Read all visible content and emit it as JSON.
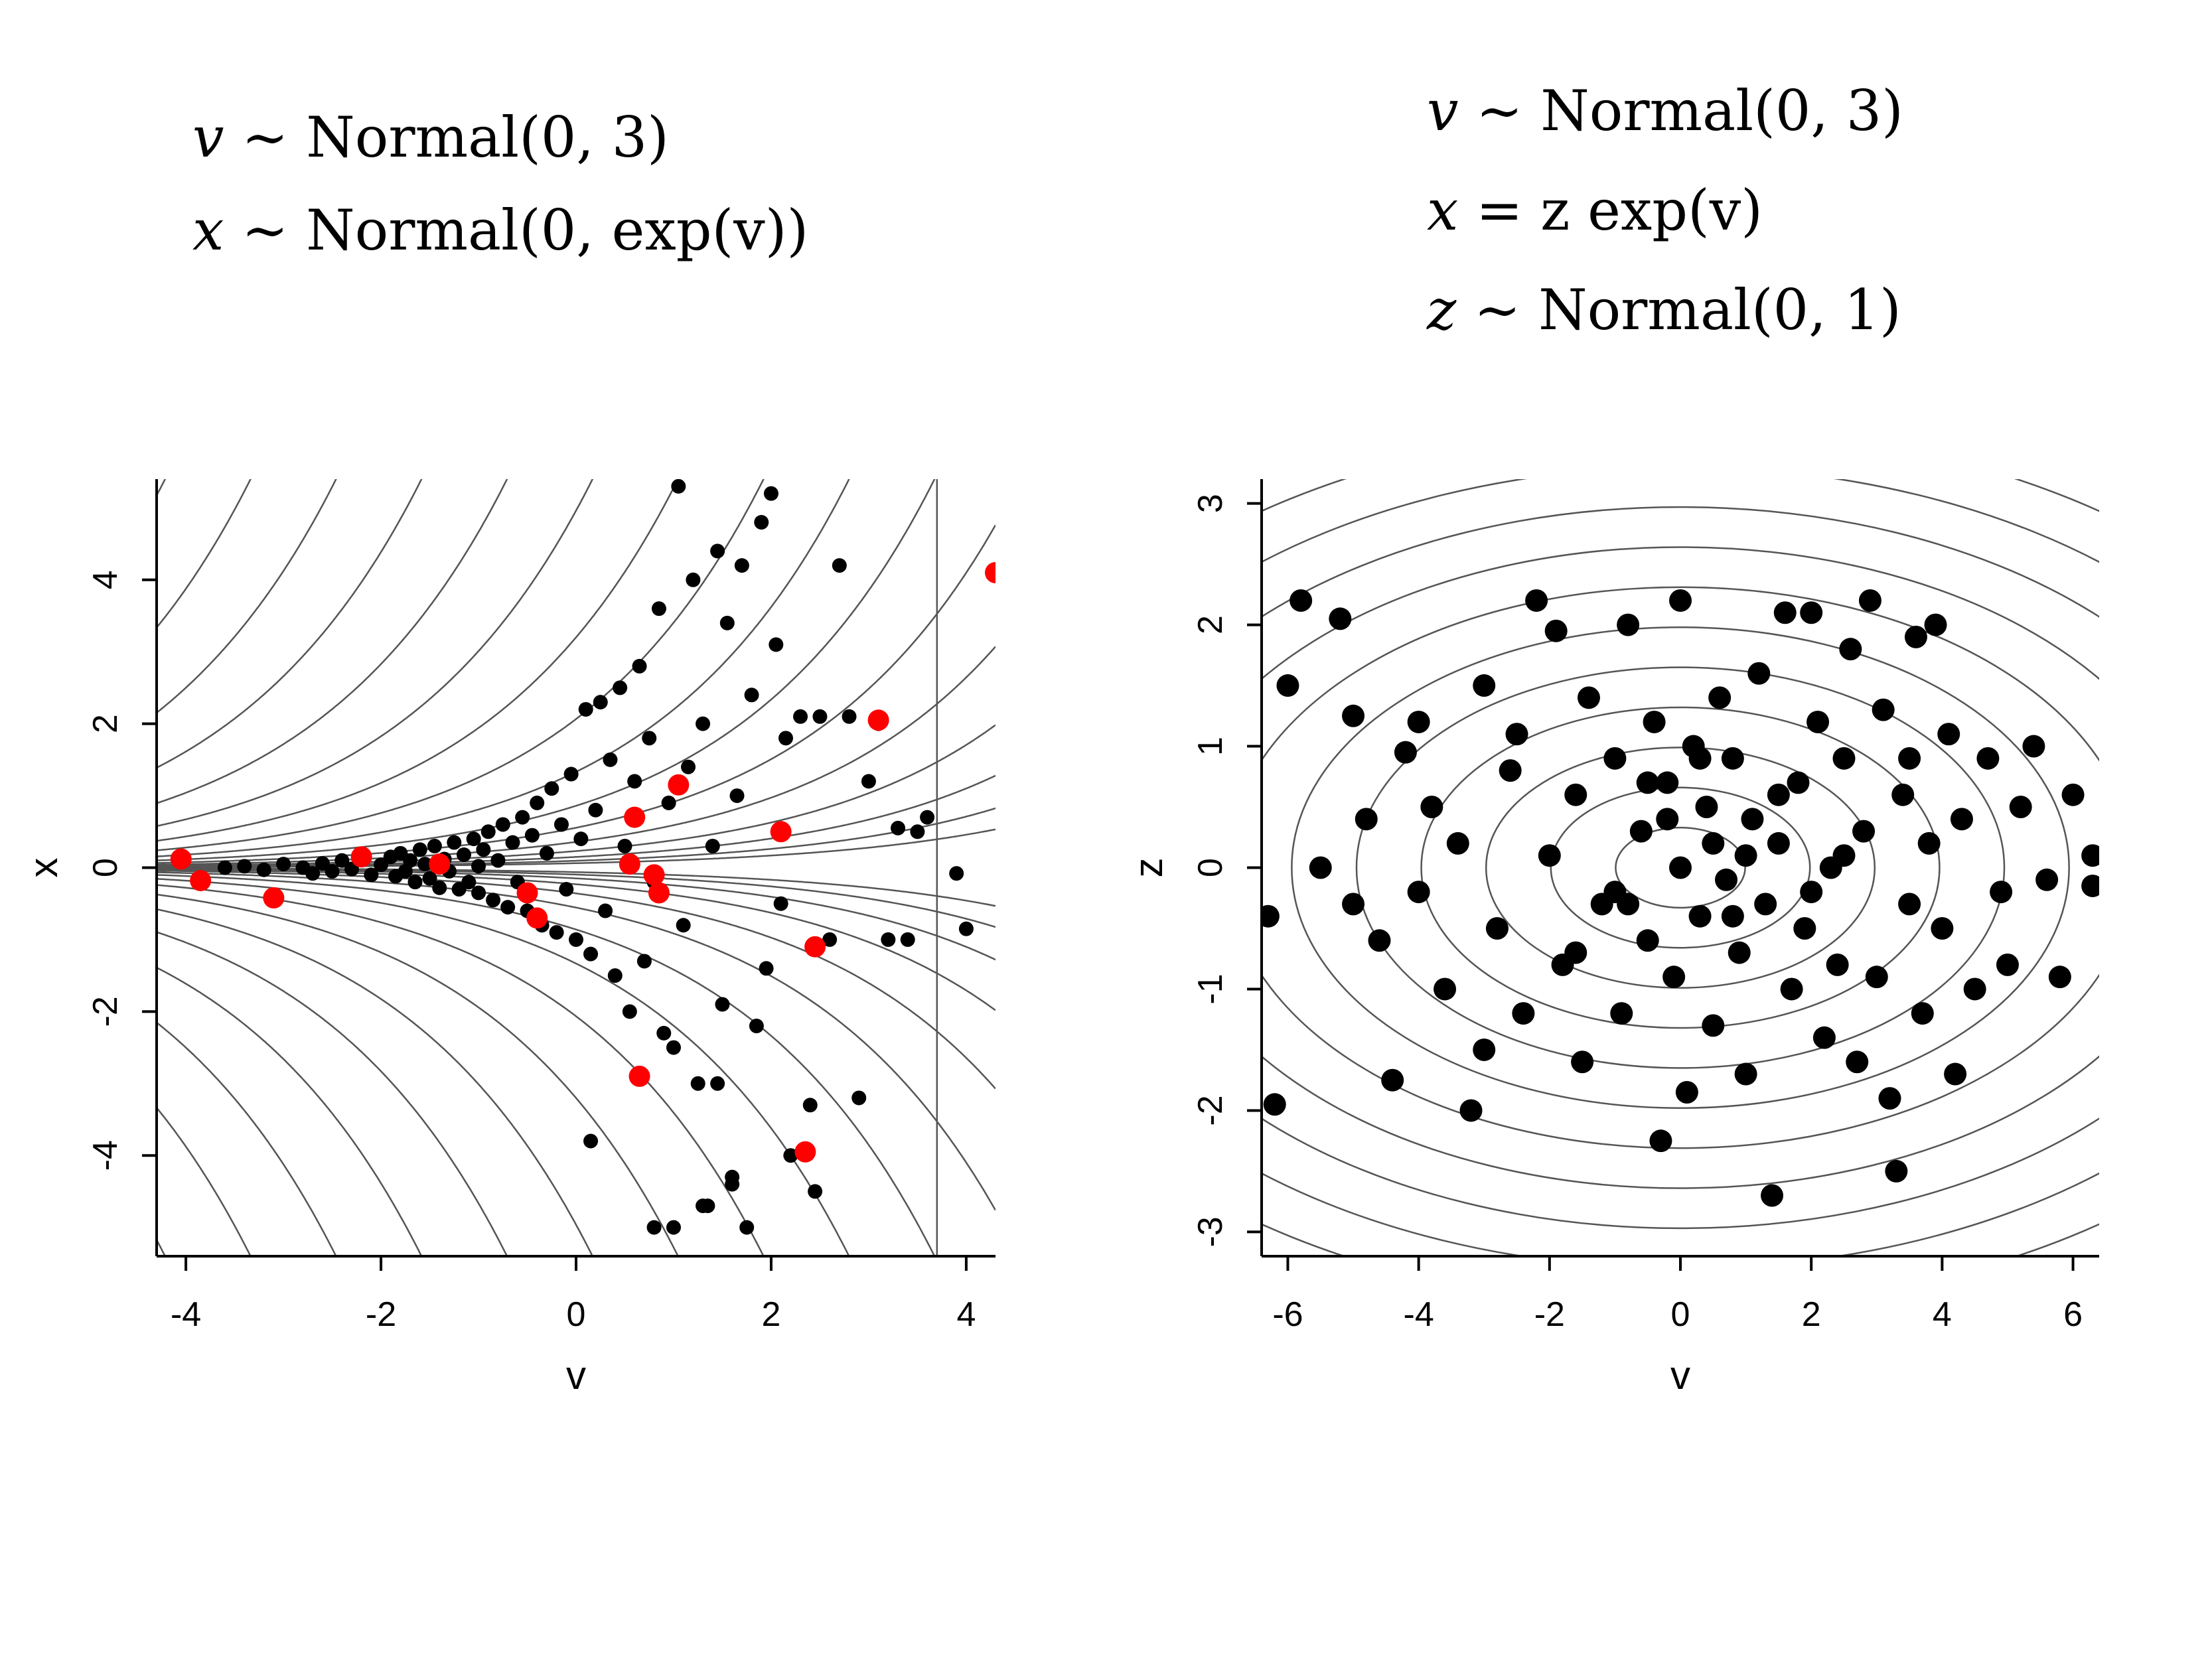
{
  "formulas": {
    "left": [
      {
        "var": "v",
        "rel": "∼",
        "rhs": "Normal(0, 3)"
      },
      {
        "var": "x",
        "rel": "∼",
        "rhs": "Normal(0, exp(v))"
      }
    ],
    "right": [
      {
        "var": "v",
        "rel": "∼",
        "rhs": "Normal(0, 3)"
      },
      {
        "var": "x",
        "rel": "=",
        "rhs": "z exp(v)"
      },
      {
        "var": "z",
        "rel": "∼",
        "rhs": "Normal(0, 1)"
      }
    ]
  },
  "chart_data": [
    {
      "type": "scatter",
      "xlabel": "v",
      "ylabel": "x",
      "xlim": [
        -4.3,
        4.3
      ],
      "ylim": [
        -5.4,
        5.4
      ],
      "xticks": [
        -4,
        -2,
        0,
        2,
        4
      ],
      "yticks": [
        -4,
        -2,
        0,
        2,
        4
      ],
      "contours": "funnel density contours",
      "colors": {
        "points": "#000000",
        "divergent": "#ff0000",
        "contour": "#555555"
      },
      "points": [
        [
          -3.6,
          0.0
        ],
        [
          -3.4,
          0.02
        ],
        [
          -3.2,
          -0.03
        ],
        [
          -3.0,
          0.05
        ],
        [
          -2.8,
          0.0
        ],
        [
          -2.7,
          -0.08
        ],
        [
          -2.6,
          0.06
        ],
        [
          -2.5,
          -0.05
        ],
        [
          -2.4,
          0.1
        ],
        [
          -2.3,
          -0.02
        ],
        [
          -2.2,
          0.12
        ],
        [
          -2.1,
          -0.1
        ],
        [
          -2.0,
          0.04
        ],
        [
          -1.9,
          0.15
        ],
        [
          -1.85,
          -0.12
        ],
        [
          -1.8,
          0.2
        ],
        [
          -1.75,
          -0.05
        ],
        [
          -1.7,
          0.1
        ],
        [
          -1.65,
          -0.2
        ],
        [
          -1.6,
          0.25
        ],
        [
          -1.55,
          0.05
        ],
        [
          -1.5,
          -0.15
        ],
        [
          -1.45,
          0.3
        ],
        [
          -1.4,
          -0.28
        ],
        [
          -1.35,
          0.12
        ],
        [
          -1.3,
          -0.05
        ],
        [
          -1.25,
          0.35
        ],
        [
          -1.2,
          -0.3
        ],
        [
          -1.15,
          0.18
        ],
        [
          -1.1,
          -0.2
        ],
        [
          -1.05,
          0.4
        ],
        [
          -1.0,
          -0.35
        ],
        [
          -0.95,
          0.25
        ],
        [
          -0.9,
          0.5
        ],
        [
          -0.85,
          -0.45
        ],
        [
          -0.8,
          0.1
        ],
        [
          -0.75,
          0.6
        ],
        [
          -0.7,
          -0.55
        ],
        [
          -0.65,
          0.35
        ],
        [
          -0.6,
          -0.2
        ],
        [
          -0.55,
          0.7
        ],
        [
          -0.5,
          -0.6
        ],
        [
          -0.45,
          0.45
        ],
        [
          -0.4,
          0.9
        ],
        [
          -0.35,
          -0.8
        ],
        [
          -0.3,
          0.2
        ],
        [
          -0.25,
          1.1
        ],
        [
          -0.2,
          -0.9
        ],
        [
          -0.15,
          0.6
        ],
        [
          -0.1,
          -0.3
        ],
        [
          -0.05,
          1.3
        ],
        [
          0.0,
          -1.0
        ],
        [
          0.05,
          0.4
        ],
        [
          0.1,
          2.2
        ],
        [
          0.15,
          -1.2
        ],
        [
          0.2,
          0.8
        ],
        [
          0.25,
          2.3
        ],
        [
          0.3,
          -0.6
        ],
        [
          0.35,
          1.5
        ],
        [
          0.4,
          -1.5
        ],
        [
          0.45,
          2.5
        ],
        [
          0.5,
          0.3
        ],
        [
          0.55,
          -2.0
        ],
        [
          0.6,
          1.2
        ],
        [
          0.65,
          2.8
        ],
        [
          0.7,
          -1.3
        ],
        [
          0.75,
          1.8
        ],
        [
          0.8,
          -0.2
        ],
        [
          0.85,
          3.6
        ],
        [
          0.9,
          -2.3
        ],
        [
          0.95,
          0.9
        ],
        [
          1.0,
          -2.5
        ],
        [
          1.05,
          5.3
        ],
        [
          1.1,
          -0.8
        ],
        [
          1.15,
          1.4
        ],
        [
          1.2,
          4.0
        ],
        [
          1.25,
          -3.0
        ],
        [
          1.3,
          2.0
        ],
        [
          1.35,
          -4.7
        ],
        [
          1.4,
          0.3
        ],
        [
          1.45,
          4.4
        ],
        [
          1.5,
          -1.9
        ],
        [
          1.55,
          3.4
        ],
        [
          1.6,
          -4.3
        ],
        [
          1.65,
          1.0
        ],
        [
          1.7,
          4.2
        ],
        [
          1.75,
          -5.0
        ],
        [
          1.8,
          2.4
        ],
        [
          1.85,
          -2.2
        ],
        [
          1.9,
          4.8
        ],
        [
          1.95,
          -1.4
        ],
        [
          2.0,
          5.2
        ],
        [
          2.05,
          3.1
        ],
        [
          2.1,
          -0.5
        ],
        [
          2.15,
          1.8
        ],
        [
          2.2,
          -4.0
        ],
        [
          2.3,
          2.1
        ],
        [
          2.4,
          -3.3
        ],
        [
          2.5,
          2.1
        ],
        [
          2.6,
          -1.0
        ],
        [
          2.7,
          4.2
        ],
        [
          2.8,
          2.1
        ],
        [
          2.9,
          -3.2
        ],
        [
          3.0,
          1.2
        ],
        [
          3.1,
          2.0
        ],
        [
          3.2,
          -1.0
        ],
        [
          3.3,
          0.55
        ],
        [
          3.4,
          -1.0
        ],
        [
          3.5,
          0.5
        ],
        [
          3.6,
          0.7
        ],
        [
          3.9,
          -0.08
        ],
        [
          4.0,
          -0.85
        ],
        [
          1.45,
          -3.0
        ],
        [
          1.6,
          -4.4
        ],
        [
          0.8,
          -5.0
        ],
        [
          1.0,
          -5.0
        ],
        [
          1.3,
          -4.7
        ],
        [
          2.45,
          -4.5
        ],
        [
          0.15,
          -3.8
        ],
        [
          -1.0,
          0.02
        ]
      ],
      "divergent_points": [
        [
          -4.05,
          0.12
        ],
        [
          -3.85,
          -0.18
        ],
        [
          -3.1,
          -0.42
        ],
        [
          -0.5,
          -0.35
        ],
        [
          -0.4,
          -0.7
        ],
        [
          0.55,
          0.05
        ],
        [
          0.6,
          0.7
        ],
        [
          0.8,
          -0.1
        ],
        [
          0.85,
          -0.35
        ],
        [
          1.05,
          1.15
        ],
        [
          0.65,
          -2.9
        ],
        [
          2.1,
          0.5
        ],
        [
          2.35,
          -3.95
        ],
        [
          2.45,
          -1.1
        ],
        [
          3.1,
          2.05
        ],
        [
          4.3,
          4.1
        ],
        [
          -2.2,
          0.15
        ],
        [
          -1.4,
          0.05
        ]
      ]
    },
    {
      "type": "scatter",
      "xlabel": "v",
      "ylabel": "z",
      "xlim": [
        -6.4,
        6.4
      ],
      "ylim": [
        -3.2,
        3.2
      ],
      "xticks": [
        -6,
        -4,
        -2,
        0,
        2,
        4,
        6
      ],
      "yticks": [
        -3,
        -2,
        -1,
        0,
        1,
        2,
        3
      ],
      "contours": "elliptical density contours",
      "colors": {
        "points": "#000000",
        "contour": "#555555"
      },
      "points": [
        [
          -6.2,
          -1.95
        ],
        [
          -6.0,
          1.5
        ],
        [
          -5.8,
          2.2
        ],
        [
          -5.2,
          2.05
        ],
        [
          -5.0,
          1.25
        ],
        [
          -4.8,
          0.4
        ],
        [
          -4.6,
          -0.6
        ],
        [
          -4.4,
          -1.75
        ],
        [
          -4.2,
          0.95
        ],
        [
          -4.0,
          -0.2
        ],
        [
          -3.8,
          0.5
        ],
        [
          -3.6,
          -1.0
        ],
        [
          -3.4,
          0.2
        ],
        [
          -3.2,
          -2.0
        ],
        [
          -3.0,
          1.5
        ],
        [
          -2.8,
          -0.5
        ],
        [
          -2.6,
          0.8
        ],
        [
          -2.4,
          -1.2
        ],
        [
          -2.2,
          2.2
        ],
        [
          -2.0,
          0.1
        ],
        [
          -1.9,
          1.95
        ],
        [
          -1.8,
          -0.8
        ],
        [
          -1.6,
          0.6
        ],
        [
          -1.5,
          -1.6
        ],
        [
          -1.4,
          1.4
        ],
        [
          -1.2,
          -0.3
        ],
        [
          -1.0,
          0.9
        ],
        [
          -0.9,
          -1.2
        ],
        [
          -0.8,
          2.0
        ],
        [
          -0.6,
          0.3
        ],
        [
          -0.5,
          -0.6
        ],
        [
          -0.4,
          1.2
        ],
        [
          -0.3,
          -2.25
        ],
        [
          -0.2,
          0.7
        ],
        [
          -0.1,
          -0.9
        ],
        [
          0.0,
          2.2
        ],
        [
          0.0,
          0.0
        ],
        [
          0.1,
          -1.85
        ],
        [
          0.2,
          1.0
        ],
        [
          0.3,
          -0.4
        ],
        [
          0.4,
          0.5
        ],
        [
          0.5,
          -1.3
        ],
        [
          0.6,
          1.4
        ],
        [
          0.7,
          -0.1
        ],
        [
          0.8,
          0.9
        ],
        [
          0.9,
          -0.7
        ],
        [
          1.0,
          -1.7
        ],
        [
          1.1,
          0.4
        ],
        [
          1.2,
          1.6
        ],
        [
          1.3,
          -0.3
        ],
        [
          1.4,
          -2.7
        ],
        [
          1.5,
          0.2
        ],
        [
          1.6,
          2.1
        ],
        [
          1.7,
          -1.0
        ],
        [
          1.8,
          0.7
        ],
        [
          1.9,
          -0.5
        ],
        [
          2.0,
          2.1
        ],
        [
          2.1,
          1.2
        ],
        [
          2.2,
          -1.4
        ],
        [
          2.3,
          0.0
        ],
        [
          2.4,
          -0.8
        ],
        [
          2.5,
          0.9
        ],
        [
          2.6,
          1.8
        ],
        [
          2.7,
          -1.6
        ],
        [
          2.8,
          0.3
        ],
        [
          2.9,
          2.2
        ],
        [
          3.0,
          -0.9
        ],
        [
          3.1,
          1.3
        ],
        [
          3.2,
          -1.9
        ],
        [
          3.3,
          -2.5
        ],
        [
          3.4,
          0.6
        ],
        [
          3.5,
          -0.3
        ],
        [
          3.6,
          1.9
        ],
        [
          3.7,
          -1.2
        ],
        [
          3.8,
          0.2
        ],
        [
          3.9,
          2.0
        ],
        [
          4.0,
          -0.5
        ],
        [
          4.1,
          1.1
        ],
        [
          4.2,
          -1.7
        ],
        [
          4.3,
          0.4
        ],
        [
          4.5,
          -1.0
        ],
        [
          4.7,
          0.9
        ],
        [
          4.9,
          -0.2
        ],
        [
          5.0,
          -0.8
        ],
        [
          5.2,
          0.5
        ],
        [
          5.4,
          1.0
        ],
        [
          5.6,
          -0.1
        ],
        [
          5.8,
          -0.9
        ],
        [
          6.0,
          0.6
        ],
        [
          6.3,
          0.1
        ],
        [
          6.3,
          -0.15
        ],
        [
          -6.3,
          -0.4
        ],
        [
          -5.5,
          0.0
        ],
        [
          -5.0,
          -0.3
        ],
        [
          -4.0,
          1.2
        ],
        [
          -3.0,
          -1.5
        ],
        [
          -2.5,
          1.1
        ],
        [
          -1.0,
          -0.2
        ],
        [
          0.5,
          0.2
        ],
        [
          1.5,
          0.6
        ],
        [
          2.5,
          0.1
        ],
        [
          3.5,
          0.9
        ],
        [
          -0.5,
          0.7
        ],
        [
          0.3,
          0.9
        ],
        [
          -0.2,
          0.4
        ],
        [
          0.8,
          -0.4
        ],
        [
          -1.6,
          -0.7
        ],
        [
          2.0,
          -0.2
        ],
        [
          1.0,
          0.1
        ],
        [
          -0.8,
          -0.3
        ]
      ]
    }
  ]
}
